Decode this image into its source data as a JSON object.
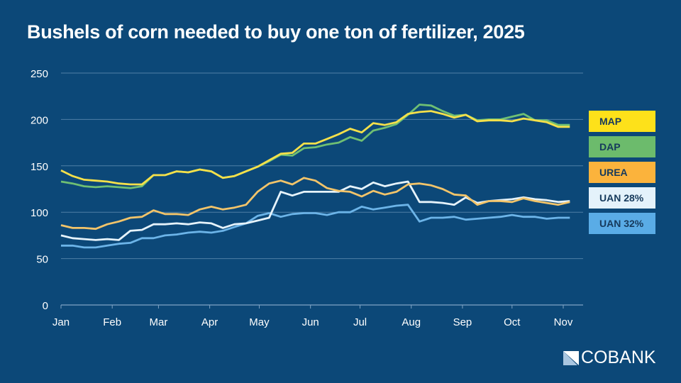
{
  "chart_data": {
    "type": "line",
    "title": "Bushels of corn needed to buy one ton of fertilizer, 2025",
    "xlabel": "",
    "ylabel": "",
    "ylim": [
      0,
      250
    ],
    "yticks": [
      0,
      50,
      100,
      150,
      200,
      250
    ],
    "xlim": [
      "2025-01-01",
      "2025-11-15"
    ],
    "xticks": [
      {
        "date": "2025-01-01",
        "label": "Jan"
      },
      {
        "date": "2025-02-01",
        "label": "Feb"
      },
      {
        "date": "2025-03-01",
        "label": "Mar"
      },
      {
        "date": "2025-04-01",
        "label": "Apr"
      },
      {
        "date": "2025-05-01",
        "label": "May"
      },
      {
        "date": "2025-06-01",
        "label": "Jun"
      },
      {
        "date": "2025-07-01",
        "label": "Jul"
      },
      {
        "date": "2025-08-01",
        "label": "Aug"
      },
      {
        "date": "2025-09-01",
        "label": "Sep"
      },
      {
        "date": "2025-10-01",
        "label": "Oct"
      },
      {
        "date": "2025-11-01",
        "label": "Nov"
      }
    ],
    "grid": "horizontal",
    "legend_position": "right",
    "x_start": "2025-01-01",
    "x_step_days": 7,
    "series": [
      {
        "name": "MAP",
        "color": "#f5e04a",
        "values": [
          145,
          139,
          135,
          134,
          133,
          131,
          130,
          130,
          140,
          140,
          144,
          143,
          146,
          144,
          137,
          139,
          144,
          149,
          156,
          163,
          164,
          174,
          174,
          179,
          184,
          190,
          186,
          196,
          194,
          197,
          206,
          208,
          209,
          206,
          202,
          205,
          198,
          199,
          199,
          198,
          201,
          199,
          197,
          192,
          192
        ]
      },
      {
        "name": "DAP",
        "color": "#6fbf73",
        "values": [
          133,
          131,
          128,
          127,
          128,
          127,
          126,
          128,
          140,
          140,
          144,
          143,
          146,
          144,
          137,
          139,
          144,
          149,
          155,
          162,
          161,
          169,
          170,
          173,
          175,
          181,
          177,
          188,
          191,
          195,
          205,
          216,
          215,
          209,
          204,
          205,
          199,
          200,
          200,
          203,
          206,
          199,
          199,
          194,
          194
        ]
      },
      {
        "name": "UREA",
        "color": "#f2c46a",
        "values": [
          86,
          83,
          83,
          82,
          87,
          90,
          94,
          95,
          102,
          98,
          98,
          97,
          103,
          106,
          103,
          105,
          108,
          122,
          131,
          134,
          130,
          137,
          134,
          126,
          123,
          122,
          117,
          123,
          119,
          122,
          130,
          131,
          129,
          125,
          119,
          118,
          108,
          112,
          112,
          111,
          115,
          112,
          110,
          108,
          111
        ]
      },
      {
        "name": "UAN 28%",
        "color": "#e6f3fb",
        "values": [
          75,
          72,
          71,
          70,
          71,
          70,
          80,
          81,
          87,
          87,
          88,
          87,
          89,
          88,
          83,
          87,
          88,
          91,
          94,
          122,
          118,
          122,
          122,
          122,
          122,
          128,
          125,
          132,
          128,
          131,
          133,
          111,
          111,
          110,
          108,
          116,
          110,
          112,
          113,
          114,
          116,
          114,
          113,
          111,
          112
        ]
      },
      {
        "name": "UAN 32%",
        "color": "#6cb4e8",
        "values": [
          64,
          64,
          62,
          62,
          64,
          66,
          67,
          72,
          72,
          75,
          76,
          78,
          79,
          78,
          80,
          84,
          88,
          96,
          99,
          95,
          98,
          99,
          99,
          97,
          100,
          100,
          106,
          103,
          105,
          107,
          108,
          90,
          94,
          94,
          95,
          92,
          93,
          94,
          95,
          97,
          95,
          95,
          93,
          94,
          94
        ]
      }
    ]
  },
  "legend": [
    {
      "label": "MAP",
      "color": "#fde11a"
    },
    {
      "label": "DAP",
      "color": "#6cbb6c"
    },
    {
      "label": "UREA",
      "color": "#fbb33c"
    },
    {
      "label": "UAN 28%",
      "color": "#e4f2fb"
    },
    {
      "label": "UAN 32%",
      "color": "#5aace6"
    }
  ],
  "logo": {
    "text": "COBANK"
  }
}
